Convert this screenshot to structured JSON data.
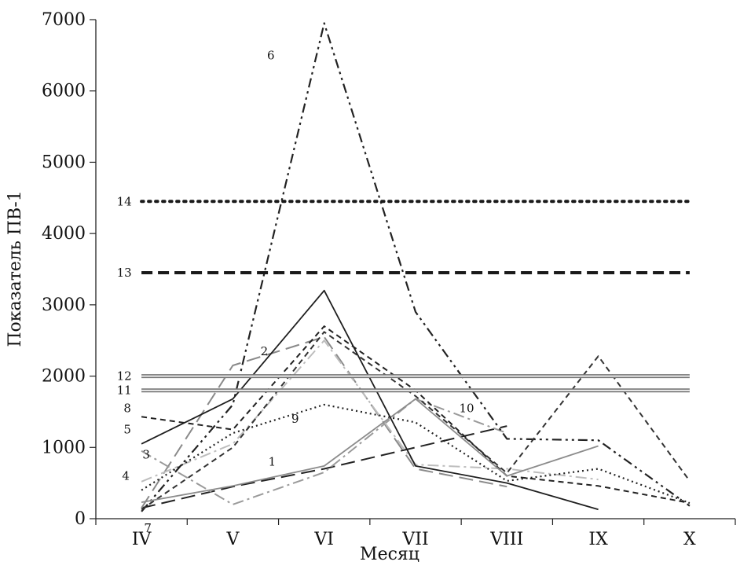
{
  "chart_data": {
    "type": "line",
    "xlabel": "Месяц",
    "ylabel": "Показатель ПВ-1",
    "categories": [
      "IV",
      "V",
      "VI",
      "VII",
      "VIII",
      "IX",
      "X"
    ],
    "ylim": [
      0,
      7000
    ],
    "yticks": [
      "0",
      "1000",
      "2000",
      "3000",
      "4000",
      "5000",
      "6000",
      "7000"
    ],
    "grid": false,
    "legend": "none",
    "series": [
      {
        "name": "1",
        "color": "#222222",
        "dash": "long-dash",
        "values": [
          150,
          450,
          700,
          1000,
          1300,
          null,
          null
        ]
      },
      {
        "name": "2",
        "color": "#8a8a8a",
        "dash": "long-dash",
        "values": [
          150,
          2150,
          2550,
          700,
          450,
          null,
          null
        ]
      },
      {
        "name": "3",
        "color": "#9a9a9a",
        "dash": "dash-dot",
        "values": [
          950,
          200,
          650,
          1680,
          1200,
          null,
          null
        ]
      },
      {
        "name": "4",
        "color": "#bdbdbd",
        "dash": "dash-dot",
        "values": [
          520,
          1050,
          2500,
          760,
          700,
          550,
          null
        ]
      },
      {
        "name": "5",
        "color": "#222222",
        "dash": "dotted",
        "values": [
          400,
          1200,
          1600,
          1350,
          530,
          700,
          220
        ]
      },
      {
        "name": "6",
        "color": "#222222",
        "dash": "dash-dot-dot",
        "values": [
          100,
          1600,
          6950,
          2900,
          1120,
          1100,
          180
        ]
      },
      {
        "name": "7",
        "color": "#333333",
        "dash": "dash",
        "values": [
          130,
          1000,
          2620,
          1720,
          640,
          2280,
          530
        ]
      },
      {
        "name": "8",
        "color": "#222222",
        "dash": "dash",
        "values": [
          1430,
          1250,
          2700,
          1800,
          600,
          460,
          220
        ]
      },
      {
        "name": "9",
        "color": "#8c8c8c",
        "dash": "solid",
        "values": [
          230,
          460,
          740,
          1680,
          600,
          1020,
          null
        ]
      },
      {
        "name": "10",
        "color": "#1e1e1e",
        "dash": "solid",
        "values": [
          1050,
          1680,
          3200,
          740,
          500,
          130,
          null
        ]
      },
      {
        "name": "11",
        "color": "#777777",
        "dash": "double",
        "values": [
          1800,
          1800,
          1800,
          1800,
          1800,
          1800,
          1800
        ]
      },
      {
        "name": "12",
        "color": "#777777",
        "dash": "double",
        "values": [
          2000,
          2000,
          2000,
          2000,
          2000,
          2000,
          2000
        ]
      },
      {
        "name": "13",
        "color": "#1a1a1a",
        "dash": "bold-dash",
        "values": [
          3450,
          3450,
          3450,
          3450,
          3450,
          3450,
          3450
        ]
      },
      {
        "name": "14",
        "color": "#1a1a1a",
        "dash": "bold-dot",
        "values": [
          4450,
          4450,
          4450,
          4450,
          4450,
          4450,
          4450
        ]
      }
    ],
    "annotations": [
      {
        "text": "6",
        "series": "6",
        "x": "VI",
        "y": 6500
      },
      {
        "text": "14",
        "series": "14",
        "x": "IV",
        "y": 4450
      },
      {
        "text": "13",
        "series": "13",
        "x": "IV",
        "y": 3450
      },
      {
        "text": "2",
        "series": "2",
        "x": "V",
        "y": 2350
      },
      {
        "text": "12",
        "series": "12",
        "x": "IV",
        "y": 2000
      },
      {
        "text": "11",
        "series": "11",
        "x": "IV",
        "y": 1800
      },
      {
        "text": "8",
        "series": "8",
        "x": "IV",
        "y": 1550
      },
      {
        "text": "10",
        "series": "10",
        "x": "VII",
        "y": 1550
      },
      {
        "text": "9",
        "series": "9",
        "x": "VI",
        "y": 1400
      },
      {
        "text": "5",
        "series": "5",
        "x": "IV",
        "y": 1250
      },
      {
        "text": "3",
        "series": "3",
        "x": "IV",
        "y": 900
      },
      {
        "text": "1",
        "series": "1",
        "x": "V",
        "y": 800
      },
      {
        "text": "4",
        "series": "4",
        "x": "IV",
        "y": 600
      },
      {
        "text": "7",
        "series": "7",
        "x": "IV",
        "y": 0
      }
    ]
  }
}
